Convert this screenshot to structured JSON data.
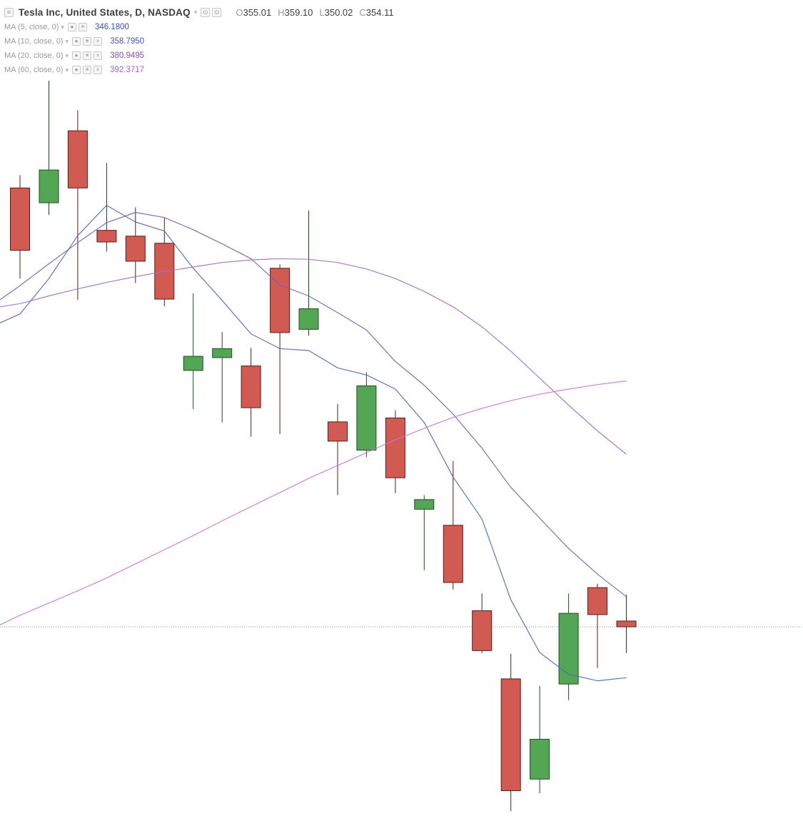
{
  "header": {
    "collapse_icon": "≡",
    "title": "Tesla Inc, United States, D, NASDAQ",
    "dropdown_caret": "▾",
    "icons": [
      {
        "name": "header-circle-button",
        "glyph": "⊙"
      },
      {
        "name": "header-circle-button",
        "glyph": "⊙"
      }
    ],
    "ohlc": [
      {
        "label": "O",
        "value": "355.01"
      },
      {
        "label": "H",
        "value": "359.10"
      },
      {
        "label": "L",
        "value": "350.02"
      },
      {
        "label": "C",
        "value": "354.11"
      }
    ],
    "ohlc_value_color": "#3d3d3d"
  },
  "indicators": [
    {
      "label": "MA (5, close, 0)",
      "caret": "▾",
      "icons": [
        "eye",
        "gear"
      ],
      "value": "346.1800",
      "color": "#2a52d8"
    },
    {
      "label": "MA (10, close, 0)",
      "caret": "▾",
      "icons": [
        "eye",
        "gear",
        "close"
      ],
      "value": "358.7950",
      "color": "#4f4fc8"
    },
    {
      "label": "MA (20, close, 0)",
      "caret": "▾",
      "icons": [
        "eye",
        "gear",
        "close"
      ],
      "value": "380.9495",
      "color": "#8a4fd0"
    },
    {
      "label": "MA (60, close, 0)",
      "caret": "▾",
      "icons": [
        "eye",
        "gear",
        "close"
      ],
      "value": "392.3717",
      "color": "#b75bd6"
    }
  ],
  "icon_glyphs": {
    "eye": "●",
    "gear": "☀",
    "close": "×"
  },
  "chart_data": {
    "type": "candlestick",
    "title": "Tesla Inc, United States, D, NASDAQ",
    "ylim": [
      323.66,
      451.66
    ],
    "grid": false,
    "x_axis_visible": false,
    "y_axis_visible": false,
    "price_line": {
      "value": 354.11,
      "color": "#5577d9"
    },
    "candle_colors": {
      "up_fill": "#53a653",
      "up_border": "#1d4e22",
      "down_fill": "#d15b52",
      "down_border": "#5d1a12"
    },
    "candles": [
      {
        "o": 422.4,
        "h": 424.4,
        "l": 408.3,
        "c": 412.7
      },
      {
        "o": 420.1,
        "h": 439.1,
        "l": 418.2,
        "c": 425.2
      },
      {
        "o": 431.3,
        "h": 434.5,
        "l": 405.0,
        "c": 422.4
      },
      {
        "o": 415.8,
        "h": 426.3,
        "l": 412.5,
        "c": 414.0
      },
      {
        "o": 414.9,
        "h": 419.4,
        "l": 407.6,
        "c": 411.0
      },
      {
        "o": 413.8,
        "h": 417.8,
        "l": 404.0,
        "c": 405.1
      },
      {
        "o": 394.0,
        "h": 406.0,
        "l": 388.0,
        "c": 396.2
      },
      {
        "o": 396.0,
        "h": 400.0,
        "l": 385.9,
        "c": 397.4
      },
      {
        "o": 394.7,
        "h": 397.5,
        "l": 383.7,
        "c": 388.2
      },
      {
        "o": 409.9,
        "h": 410.5,
        "l": 384.1,
        "c": 399.9
      },
      {
        "o": 400.4,
        "h": 418.9,
        "l": 399.4,
        "c": 403.6
      },
      {
        "o": 386.0,
        "h": 388.8,
        "l": 374.6,
        "c": 383.0
      },
      {
        "o": 381.6,
        "h": 393.7,
        "l": 380.5,
        "c": 391.6
      },
      {
        "o": 386.6,
        "h": 387.8,
        "l": 374.9,
        "c": 377.3
      },
      {
        "o": 372.4,
        "h": 374.6,
        "l": 362.9,
        "c": 373.9
      },
      {
        "o": 369.9,
        "h": 379.9,
        "l": 359.9,
        "c": 361.0
      },
      {
        "o": 356.6,
        "h": 359.3,
        "l": 350.0,
        "c": 350.4
      },
      {
        "o": 346.0,
        "h": 349.9,
        "l": 325.4,
        "c": 328.6
      },
      {
        "o": 330.4,
        "h": 344.9,
        "l": 328.2,
        "c": 336.6
      },
      {
        "o": 345.2,
        "h": 359.3,
        "l": 342.7,
        "c": 356.2
      },
      {
        "o": 360.2,
        "h": 360.8,
        "l": 347.7,
        "c": 356.0
      },
      {
        "o": 355.01,
        "h": 359.1,
        "l": 350.02,
        "c": 354.11
      }
    ],
    "ma_lines": [
      {
        "name": "MA5",
        "color": "#4a63d0",
        "edge": 401.4,
        "values": [
          402.8,
          408.3,
          415.0,
          419.7,
          417.1,
          415.7,
          409.9,
          404.9,
          399.7,
          397.4,
          397.1,
          394.4,
          393.3,
          391.1,
          385.9,
          377.4,
          370.9,
          358.3,
          350.1,
          346.7,
          345.7,
          346.18
        ]
      },
      {
        "name": "MA10",
        "color": "#6a5fc9",
        "edge": 405.0,
        "values": [
          407.2,
          410.6,
          413.9,
          417.0,
          418.6,
          417.8,
          415.9,
          413.7,
          411.4,
          407.3,
          405.6,
          403.0,
          400.3,
          395.4,
          391.7,
          387.2,
          381.9,
          375.8,
          371.0,
          366.3,
          362.3,
          358.795
        ]
      },
      {
        "name": "MA20",
        "color": "#a26ad4",
        "edge": 403.9,
        "values": [
          404.4,
          405.6,
          406.7,
          407.7,
          408.6,
          409.4,
          410.1,
          410.8,
          411.2,
          411.4,
          411.3,
          410.8,
          409.8,
          408.3,
          406.3,
          403.9,
          400.8,
          397.0,
          392.8,
          388.6,
          384.6,
          380.9495
        ]
      },
      {
        "name": "MA60",
        "color": "#cf76d2",
        "edge": 354.4,
        "values": [
          355.9,
          357.8,
          359.7,
          361.7,
          363.9,
          366.1,
          368.3,
          370.6,
          372.8,
          375.0,
          377.2,
          379.2,
          381.2,
          383.2,
          385.0,
          386.7,
          388.1,
          389.3,
          390.3,
          391.1,
          391.8,
          392.3717
        ]
      }
    ]
  }
}
